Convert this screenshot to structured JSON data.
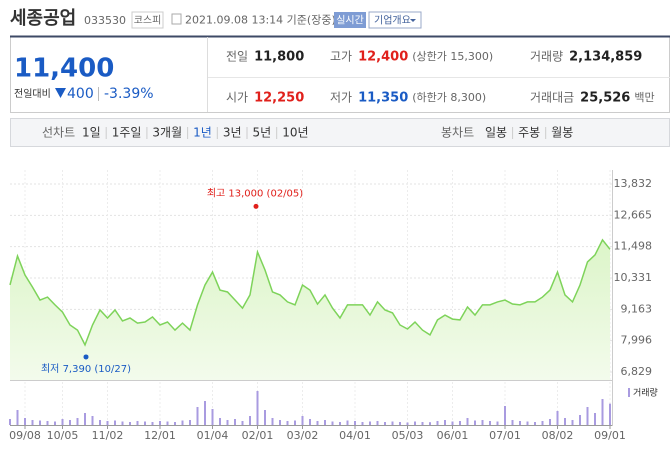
{
  "header": {
    "title": "세종공업",
    "code": "033530",
    "market": "코스피",
    "datetime": "2021.09.08 13:14 기준(장중)",
    "realtime": "실시간",
    "company_info": "기업개요"
  },
  "price": {
    "current": "11,400",
    "change_label": "전일대비",
    "change": "400",
    "change_pct": "-3.39%"
  },
  "stats": [
    {
      "label": "전일",
      "value": "11,800"
    },
    {
      "label": "고가",
      "value": "12,400",
      "note": "(상한가 15,300)"
    },
    {
      "label": "거래량",
      "value": "2,134,859"
    },
    {
      "label": "시가",
      "value": "12,250"
    },
    {
      "label": "저가",
      "value": "11,350",
      "note": "(하한가 8,300)"
    },
    {
      "label": "거래대금",
      "value": "25,526",
      "unit": "백만"
    }
  ],
  "tabs": {
    "line_label": "선차트",
    "periods": [
      "1일",
      "1주일",
      "3개월",
      "1년",
      "3년",
      "5년",
      "10년"
    ],
    "selected_period": 3,
    "candle_label": "봉차트",
    "candles": [
      "일봉",
      "주봉",
      "월봉"
    ]
  },
  "chart_data": {
    "type": "area",
    "color": "#7ed35a",
    "fill": "#dcf5c8",
    "volume_color": "#a99be0",
    "categories": [
      null,
      null,
      "09/08",
      null,
      null,
      null,
      null,
      "10/05",
      null,
      null,
      null,
      null,
      null,
      "11/02",
      null,
      null,
      null,
      null,
      null,
      null,
      "12/01",
      null,
      null,
      null,
      null,
      null,
      null,
      "01/04",
      null,
      null,
      null,
      null,
      null,
      "02/01",
      null,
      null,
      null,
      null,
      null,
      "03/02",
      null,
      null,
      null,
      null,
      null,
      null,
      "04/01",
      null,
      null,
      null,
      null,
      null,
      null,
      "05/03",
      null,
      null,
      null,
      null,
      null,
      "06/01",
      null,
      null,
      null,
      null,
      null,
      null,
      "07/01",
      null,
      null,
      null,
      null,
      null,
      null,
      "08/02",
      null,
      null,
      null,
      null,
      null,
      null,
      "09/01"
    ],
    "values": [
      10070,
      11150,
      10440,
      9990,
      9510,
      9620,
      9330,
      9060,
      8580,
      8390,
      7840,
      8580,
      9140,
      8840,
      9140,
      8730,
      8840,
      8650,
      8690,
      8880,
      8580,
      8690,
      8390,
      8650,
      8390,
      9330,
      10070,
      10550,
      9880,
      9810,
      9510,
      9210,
      9700,
      11300,
      10630,
      9810,
      9700,
      9440,
      9330,
      10070,
      9880,
      9360,
      9700,
      9210,
      8840,
      9330,
      9330,
      9330,
      8950,
      9440,
      9140,
      9030,
      8580,
      8430,
      8690,
      8390,
      8210,
      8770,
      8950,
      8800,
      8770,
      9250,
      8950,
      9330,
      9330,
      9440,
      9510,
      9360,
      9330,
      9440,
      9440,
      9620,
      9880,
      10550,
      9700,
      9440,
      10070,
      10930,
      11190,
      11750,
      11400
    ],
    "volume": [
      600000,
      1500000,
      700000,
      500000,
      450000,
      400000,
      350000,
      600000,
      500000,
      700000,
      1200000,
      900000,
      500000,
      400000,
      450000,
      350000,
      300000,
      400000,
      350000,
      300000,
      400000,
      350000,
      300000,
      450000,
      500000,
      1800000,
      2400000,
      1600000,
      700000,
      500000,
      600000,
      400000,
      900000,
      3400000,
      1500000,
      700000,
      500000,
      400000,
      450000,
      900000,
      600000,
      400000,
      500000,
      350000,
      300000,
      450000,
      400000,
      300000,
      350000,
      400000,
      300000,
      350000,
      300000,
      250000,
      350000,
      300000,
      280000,
      400000,
      500000,
      350000,
      400000,
      700000,
      450000,
      500000,
      400000,
      350000,
      1900000,
      500000,
      400000,
      350000,
      300000,
      400000,
      600000,
      1400000,
      700000,
      500000,
      1000000,
      1800000,
      1200000,
      2600000,
      2134859
    ],
    "volume_ylim": [
      0,
      4000000
    ],
    "volume_label": "거래량",
    "ylim": [
      6829,
      13832
    ],
    "yticks": [
      {
        "value": 6829,
        "label": "6,829"
      },
      {
        "value": 7996,
        "label": "7,996"
      },
      {
        "value": 9163,
        "label": "9,163"
      },
      {
        "value": 10331,
        "label": "10,331"
      },
      {
        "value": 11498,
        "label": "11,498"
      },
      {
        "value": 12665,
        "label": "12,665"
      },
      {
        "value": 13832,
        "label": "13,832"
      }
    ],
    "grid": true,
    "high": {
      "label": "최고 13,000 (02/05)",
      "value": 13000
    },
    "low": {
      "label": "최저 7,390 (10/27)",
      "value": 7390
    }
  }
}
